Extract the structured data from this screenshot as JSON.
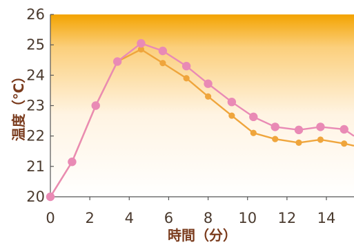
{
  "chart_data": {
    "type": "line",
    "title": "",
    "xlabel": "時間（分）",
    "ylabel": "温度（℃）",
    "xlim": [
      0,
      15.4
    ],
    "ylim": [
      20,
      26
    ],
    "x_ticks": [
      "0",
      "2",
      "4",
      "6",
      "8",
      "10",
      "12",
      "14"
    ],
    "y_ticks": [
      "20",
      "21",
      "22",
      "23",
      "24",
      "25",
      "26"
    ],
    "grid": false,
    "legend": "none",
    "background": "gradient (orange at top fading to white)",
    "series": [
      {
        "color": "#e98ab5",
        "marker": "large-circle",
        "x": [
          0,
          1.1,
          2.3,
          3.4,
          4.6,
          5.7,
          6.9,
          8.0,
          9.2,
          10.3,
          11.4,
          12.6,
          13.7,
          14.9,
          15.4
        ],
        "y": [
          20.0,
          21.15,
          23.0,
          24.45,
          25.05,
          24.8,
          24.3,
          23.72,
          23.12,
          22.63,
          22.3,
          22.2,
          22.3,
          22.22,
          22.0
        ]
      },
      {
        "color": "#efa53c",
        "marker": "small-circle",
        "x": [
          0,
          1.1,
          2.3,
          3.4,
          4.6,
          5.7,
          6.9,
          8.0,
          9.2,
          10.3,
          11.4,
          12.6,
          13.7,
          14.9,
          15.4
        ],
        "y": [
          20.0,
          21.15,
          23.0,
          24.45,
          24.85,
          24.4,
          23.9,
          23.3,
          22.67,
          22.1,
          21.9,
          21.78,
          21.88,
          21.75,
          21.68
        ]
      }
    ]
  }
}
